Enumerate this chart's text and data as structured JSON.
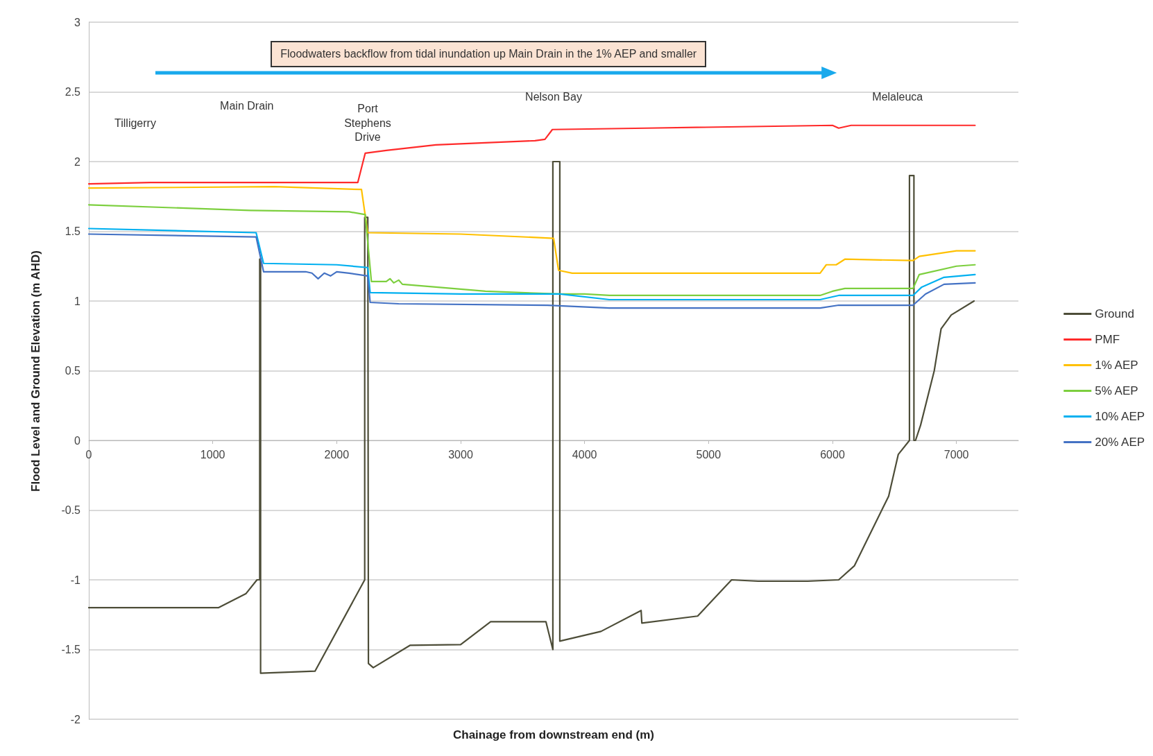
{
  "chart_data": {
    "type": "line",
    "xlabel": "Chainage from downstream end (m)",
    "ylabel": "Flood Level and Ground Elevation (m AHD)",
    "xlim": [
      0,
      7500
    ],
    "xticks": [
      0,
      1000,
      2000,
      3000,
      4000,
      5000,
      6000,
      7000
    ],
    "ylim": [
      -2,
      3
    ],
    "yticks": [
      -2,
      -1.5,
      -1,
      -0.5,
      0,
      0.5,
      1,
      1.5,
      2,
      2.5,
      3
    ],
    "grid": "y",
    "legend": "right",
    "marker": "none",
    "line_style": "solid",
    "annotations": [
      "Floodwaters backflow from tidal inundation up Main Drain in the 1% AEP and smaller",
      "Tilligerry",
      "Main Drain",
      "Port Stephens Drive",
      "Nelson Bay",
      "Melaleuca"
    ],
    "series": [
      {
        "name": "Ground",
        "color": "#4d4d38",
        "x": [
          0,
          1045,
          1267,
          1357,
          1379,
          1379,
          1386,
          1386,
          1825,
          2226,
          2226,
          2251,
          2256,
          2295,
          2591,
          3000,
          3242,
          3688,
          3744,
          3744,
          3744,
          3800,
          3800,
          4132,
          4456,
          4462,
          4912,
          5186,
          5400,
          5800,
          6050,
          6176,
          6453,
          6531,
          6621,
          6621,
          6657,
          6657,
          6670,
          6711,
          6821,
          6876,
          6958,
          7142
        ],
        "values": [
          -1.2,
          -1.2,
          -1.1,
          -1.0,
          -1.0,
          1.3,
          1.3,
          -1.67,
          -1.655,
          -1.0,
          1.6,
          1.6,
          -1.6,
          -1.63,
          -1.47,
          -1.465,
          -1.3,
          -1.3,
          -1.5,
          2.0,
          2.0,
          2.0,
          -1.44,
          -1.37,
          -1.22,
          -1.31,
          -1.26,
          -1.0,
          -1.01,
          -1.01,
          -1.0,
          -0.9,
          -0.4,
          -0.1,
          0,
          1.9,
          1.9,
          0,
          0,
          0.11,
          0.5,
          0.8,
          0.9,
          1.0
        ]
      },
      {
        "name": "PMF",
        "color": "#ff2a2a",
        "x": [
          0,
          500,
          2170,
          2230,
          2400,
          2800,
          3600,
          3680,
          3740,
          4500,
          6000,
          6050,
          6150,
          7150
        ],
        "values": [
          1.84,
          1.85,
          1.85,
          2.06,
          2.08,
          2.12,
          2.15,
          2.16,
          2.23,
          2.24,
          2.26,
          2.24,
          2.26,
          2.26
        ]
      },
      {
        "name": "1% AEP",
        "color": "#ffc000",
        "x": [
          0,
          1500,
          2200,
          2250,
          3000,
          3750,
          3790,
          3900,
          5900,
          5950,
          6030,
          6100,
          6650,
          6700,
          7000,
          7150
        ],
        "values": [
          1.81,
          1.82,
          1.8,
          1.49,
          1.48,
          1.45,
          1.22,
          1.2,
          1.2,
          1.26,
          1.26,
          1.3,
          1.29,
          1.32,
          1.36,
          1.36
        ]
      },
      {
        "name": "5% AEP",
        "color": "#7ccf3e",
        "x": [
          0,
          1300,
          2100,
          2230,
          2280,
          2400,
          2430,
          2460,
          2500,
          2530,
          2800,
          3200,
          3800,
          4000,
          4200,
          5900,
          6000,
          6100,
          6650,
          6700,
          7000,
          7150
        ],
        "values": [
          1.69,
          1.65,
          1.64,
          1.62,
          1.14,
          1.14,
          1.16,
          1.13,
          1.15,
          1.12,
          1.1,
          1.07,
          1.05,
          1.05,
          1.04,
          1.04,
          1.07,
          1.09,
          1.09,
          1.19,
          1.25,
          1.26
        ]
      },
      {
        "name": "10% AEP",
        "color": "#00b0f0",
        "x": [
          0,
          1350,
          1410,
          2000,
          2250,
          2270,
          3000,
          3800,
          4200,
          5900,
          6050,
          6650,
          6720,
          6900,
          7150
        ],
        "values": [
          1.52,
          1.49,
          1.27,
          1.26,
          1.24,
          1.06,
          1.05,
          1.05,
          1.01,
          1.01,
          1.04,
          1.04,
          1.1,
          1.17,
          1.19
        ]
      },
      {
        "name": "20% AEP",
        "color": "#4472c4",
        "x": [
          0,
          1350,
          1410,
          1750,
          1800,
          1850,
          1900,
          1950,
          2000,
          2100,
          2250,
          2270,
          2500,
          3700,
          4200,
          5900,
          6050,
          6650,
          6750,
          6900,
          7150
        ],
        "values": [
          1.48,
          1.46,
          1.21,
          1.21,
          1.2,
          1.16,
          1.2,
          1.18,
          1.21,
          1.2,
          1.18,
          0.99,
          0.98,
          0.97,
          0.95,
          0.95,
          0.97,
          0.97,
          1.05,
          1.12,
          1.13
        ]
      }
    ]
  }
}
